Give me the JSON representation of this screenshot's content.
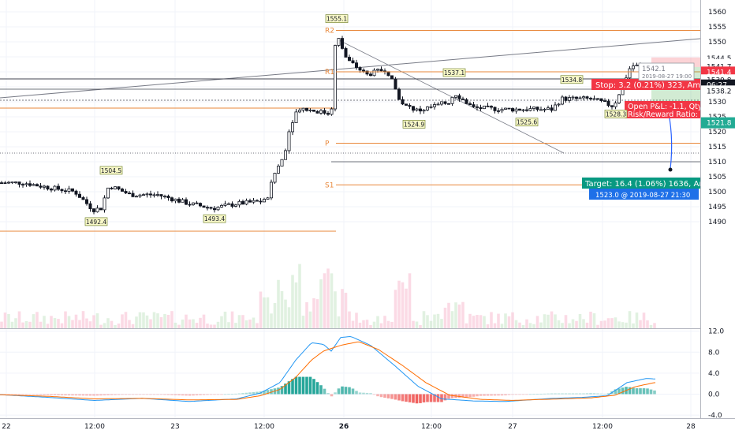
{
  "chart_data": [
    {
      "type": "candlestick",
      "title": "",
      "ylim": [
        1485,
        1563
      ],
      "price_axis_ticks": [
        1560.0,
        1555.0,
        1550.0,
        1545.0,
        1540.0,
        1535.0,
        1530.0,
        1525.0,
        1520.0,
        1515.0,
        1510.0,
        1505.0,
        1500.0,
        1495.0,
        1490.0
      ],
      "time_axis_labels": [
        "22",
        "12:00",
        "23",
        "12:00",
        "26",
        "12:00",
        "27",
        "12:00",
        "28"
      ],
      "price_badges": [
        {
          "value": "1544.5",
          "price": 1544.5,
          "color": "#ffffff",
          "text_color": "#131722"
        },
        {
          "value": "1542.4",
          "price": 1542.4,
          "color": "#ffffff",
          "text_color": "#131722"
        },
        {
          "value": "1541.7",
          "price": 1541.7,
          "color": "#ffffff",
          "text_color": "#131722"
        },
        {
          "value": "1541.4",
          "price": 1539.9,
          "color": "#f23645",
          "text_color": "#ffffff"
        },
        {
          "value": "1539.8",
          "price": 1537.3,
          "color": "#ffffff",
          "text_color": "#131722"
        },
        {
          "value": "06:27",
          "price": 1535.6,
          "color": "#131722",
          "text_color": "#ffffff"
        },
        {
          "value": "1538.2",
          "price": 1533.6,
          "color": "#ffffff",
          "text_color": "#131722"
        },
        {
          "value": "1521.8",
          "price": 1523.0,
          "color": "#22ab94",
          "text_color": "#ffffff"
        }
      ],
      "pivot_levels": [
        {
          "label": "R2",
          "price": 1553.8
        },
        {
          "label": "R1",
          "price": 1540.0
        },
        {
          "label": "P",
          "price": 1516.2
        },
        {
          "label": "S1",
          "price": 1502.3
        }
      ],
      "price_callouts": [
        {
          "label": "1555.1",
          "price": 1555.1,
          "position": "above"
        },
        {
          "label": "1504.5",
          "price": 1504.5,
          "position": "above"
        },
        {
          "label": "1492.4",
          "price": 1492.4,
          "position": "below"
        },
        {
          "label": "1493.4",
          "price": 1493.4,
          "position": "below"
        },
        {
          "label": "1524.9",
          "price": 1524.9,
          "position": "below"
        },
        {
          "label": "1537.1",
          "price": 1537.1,
          "position": "above"
        },
        {
          "label": "1525.6",
          "price": 1525.6,
          "position": "below"
        },
        {
          "label": "1534.8",
          "price": 1534.8,
          "position": "above"
        },
        {
          "label": "1528.3",
          "price": 1528.3,
          "position": "below"
        }
      ],
      "position_tool": {
        "stop_label": "Stop: 3.2 (0.21%) 323, Am",
        "pnl_label": "Open P&L: -1.1, Qty",
        "rr_label": "Risk/Reward Ratio:",
        "target_label": "Target: 16.4 (1.06%) 1636, Am",
        "entry_price": 1541.6,
        "stop_price": 1544.8,
        "target_price": 1525.2
      },
      "crosshair_tooltip": {
        "price": "1542.1",
        "time": "2019-08-27 19:00"
      },
      "time_badge": "1523.0  @ 2019-08-27  21:30",
      "colors": {
        "up": "#26a69a",
        "down": "#ef5350",
        "candle_body": "#131722",
        "pivot": "#e8873a"
      }
    },
    {
      "type": "line",
      "title": "",
      "ylim": [
        -5,
        12.5
      ],
      "axis_ticks": [
        "12.0",
        "8.0",
        "4.0",
        "0.0",
        "-4.0"
      ],
      "axis_tick_values": [
        12,
        8,
        4,
        0,
        -4
      ],
      "series": [
        {
          "color": "#2196f3",
          "role": "macd"
        },
        {
          "color": "#ff6d00",
          "role": "signal"
        }
      ],
      "histogram": {
        "positive_color": "#26a69a",
        "negative_color": "#ef5350"
      }
    }
  ]
}
